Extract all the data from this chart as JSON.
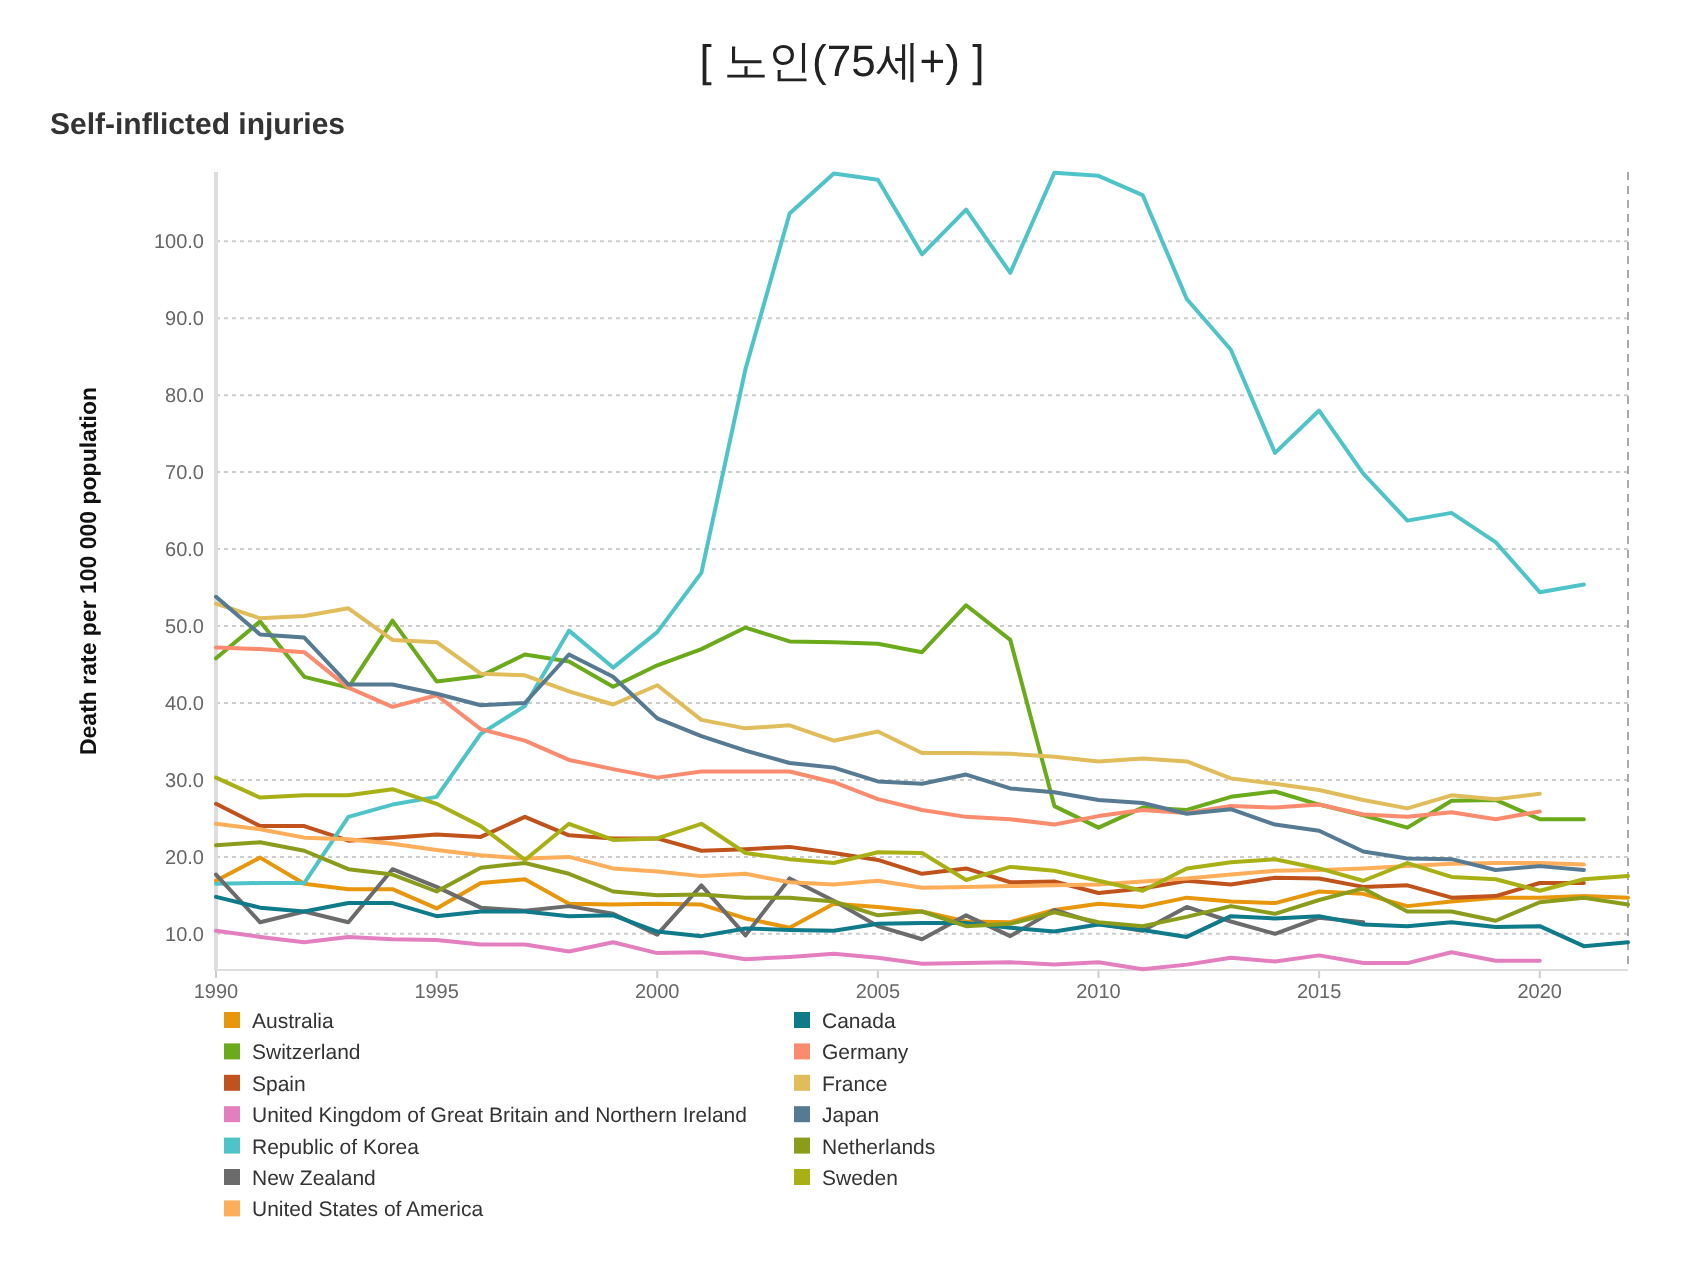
{
  "chart_data": {
    "type": "line",
    "title": "[ 노인(75세+) ]",
    "subtitle": "Self-inflicted injuries",
    "ylabel": "Death rate per 100 000 population",
    "xlim": [
      1990,
      2022
    ],
    "xticks": [
      1990,
      1995,
      2000,
      2005,
      2010,
      2015,
      2020
    ],
    "ylim": [
      5.3,
      109
    ],
    "yticks": [
      {
        "value": 10,
        "label": "10.0"
      },
      {
        "value": 20,
        "label": "20.0"
      },
      {
        "value": 30,
        "label": "30.0"
      },
      {
        "value": 40,
        "label": "40.0"
      },
      {
        "value": 50,
        "label": "50.0"
      },
      {
        "value": 60,
        "label": "60.0"
      },
      {
        "value": 70,
        "label": "70.0"
      },
      {
        "value": 80,
        "label": "80.0"
      },
      {
        "value": 90,
        "label": "90.0"
      },
      {
        "value": 100,
        "label": "100.0"
      }
    ],
    "grid": "y",
    "legend": "bottom",
    "marker": "none",
    "line_style": "solid",
    "ref_lines": [
      {
        "axis": "x",
        "value": 2022,
        "label": null,
        "color": "#aaaaaa",
        "line_style": "dashed"
      }
    ],
    "series": [
      {
        "name": "Australia",
        "color": "#e8960b",
        "x": [
          1990,
          1991,
          1992,
          1993,
          1994,
          1995,
          1996,
          1997,
          1998,
          1999,
          2000,
          2001,
          2002,
          2003,
          2004,
          2005,
          2006,
          2007,
          2008,
          2009,
          2010,
          2011,
          2012,
          2013,
          2014,
          2015,
          2016,
          2017,
          2018,
          2019,
          2020,
          2021,
          2022
        ],
        "values": [
          16.9,
          19.9,
          16.5,
          15.8,
          15.8,
          13.3,
          16.6,
          17.1,
          13.9,
          13.8,
          13.9,
          13.8,
          12.0,
          10.8,
          13.9,
          13.5,
          12.9,
          11.6,
          11.5,
          13.1,
          13.9,
          13.5,
          14.7,
          14.2,
          14.0,
          15.5,
          15.2,
          13.6,
          14.2,
          14.7,
          14.7,
          14.9,
          14.7
        ]
      },
      {
        "name": "Switzerland",
        "color": "#6aaa1b",
        "x": [
          1990,
          1991,
          1992,
          1993,
          1994,
          1995,
          1996,
          1997,
          1998,
          1999,
          2000,
          2001,
          2002,
          2003,
          2004,
          2005,
          2006,
          2007,
          2008,
          2009,
          2010,
          2011,
          2012,
          2013,
          2014,
          2015,
          2016,
          2017,
          2018,
          2019,
          2020,
          2021
        ],
        "values": [
          45.8,
          50.6,
          43.4,
          42.0,
          50.7,
          42.8,
          43.5,
          46.3,
          45.4,
          42.1,
          44.9,
          47.0,
          49.8,
          48.0,
          47.9,
          47.7,
          46.6,
          52.7,
          48.2,
          26.6,
          23.8,
          26.4,
          26.1,
          27.8,
          28.5,
          26.8,
          25.4,
          23.8,
          27.3,
          27.4,
          24.9,
          24.9
        ]
      },
      {
        "name": "Spain",
        "color": "#c0521b",
        "x": [
          1990,
          1991,
          1992,
          1993,
          1994,
          1995,
          1996,
          1997,
          1998,
          1999,
          2000,
          2001,
          2002,
          2003,
          2004,
          2005,
          2006,
          2007,
          2008,
          2009,
          2010,
          2011,
          2012,
          2013,
          2014,
          2015,
          2016,
          2017,
          2018,
          2019,
          2020,
          2021
        ],
        "values": [
          26.9,
          24.0,
          24.0,
          22.1,
          22.5,
          22.9,
          22.6,
          25.2,
          22.8,
          22.4,
          22.4,
          20.8,
          21.0,
          21.3,
          20.5,
          19.6,
          17.8,
          18.5,
          16.7,
          16.8,
          15.3,
          15.9,
          16.9,
          16.4,
          17.3,
          17.2,
          16.1,
          16.3,
          14.7,
          14.9,
          16.6,
          16.6
        ]
      },
      {
        "name": "United Kingdom of Great Britain and Northern Ireland",
        "color": "#e37fbf",
        "x": [
          1990,
          1991,
          1992,
          1993,
          1994,
          1995,
          1996,
          1997,
          1998,
          1999,
          2000,
          2001,
          2002,
          2003,
          2004,
          2005,
          2006,
          2007,
          2008,
          2009,
          2010,
          2011,
          2012,
          2013,
          2014,
          2015,
          2016,
          2017,
          2018,
          2019,
          2020
        ],
        "values": [
          10.4,
          9.6,
          8.9,
          9.6,
          9.3,
          9.2,
          8.6,
          8.6,
          7.7,
          8.9,
          7.5,
          7.6,
          6.7,
          7.0,
          7.4,
          6.9,
          6.1,
          6.2,
          6.3,
          6.0,
          6.3,
          5.4,
          6.0,
          6.9,
          6.4,
          7.2,
          6.2,
          6.2,
          7.6,
          6.5,
          6.5
        ]
      },
      {
        "name": "Republic of Korea",
        "color": "#4fc4c8",
        "x": [
          1990,
          1991,
          1992,
          1993,
          1994,
          1995,
          1996,
          1997,
          1998,
          1999,
          2000,
          2001,
          2002,
          2003,
          2004,
          2005,
          2006,
          2007,
          2008,
          2009,
          2010,
          2011,
          2012,
          2013,
          2014,
          2015,
          2016,
          2017,
          2018,
          2019,
          2020,
          2021
        ],
        "values": [
          16.5,
          16.6,
          16.6,
          25.2,
          26.8,
          27.8,
          36.0,
          39.6,
          49.4,
          44.6,
          49.2,
          56.9,
          83.4,
          103.6,
          108.8,
          108.0,
          98.3,
          104.1,
          95.9,
          108.9,
          108.5,
          106.0,
          92.5,
          85.9,
          72.5,
          78.0,
          69.8,
          63.7,
          64.7,
          60.9,
          54.4,
          55.4
        ]
      },
      {
        "name": "New Zealand",
        "color": "#6b6b6b",
        "x": [
          1990,
          1991,
          1992,
          1993,
          1994,
          1995,
          1996,
          1997,
          1998,
          1999,
          2000,
          2001,
          2002,
          2003,
          2004,
          2005,
          2006,
          2007,
          2008,
          2009,
          2010,
          2011,
          2012,
          2013,
          2014,
          2015,
          2016
        ],
        "values": [
          17.7,
          11.5,
          12.9,
          11.5,
          18.4,
          16.1,
          13.4,
          13.0,
          13.6,
          12.6,
          9.9,
          16.3,
          9.8,
          17.2,
          14.3,
          11.0,
          9.3,
          12.4,
          9.7,
          13.1,
          11.3,
          10.4,
          13.5,
          11.6,
          10.0,
          12.1,
          11.5
        ]
      },
      {
        "name": "United States of America",
        "color": "#fdae5a",
        "x": [
          1990,
          1991,
          1992,
          1993,
          1994,
          1995,
          1996,
          1997,
          1998,
          1999,
          2000,
          2001,
          2002,
          2003,
          2004,
          2005,
          2006,
          2007,
          2008,
          2009,
          2010,
          2011,
          2012,
          2013,
          2014,
          2015,
          2016,
          2017,
          2018,
          2019,
          2020,
          2021
        ],
        "values": [
          24.3,
          23.6,
          22.5,
          22.3,
          21.7,
          20.9,
          20.2,
          19.8,
          20.0,
          18.5,
          18.1,
          17.5,
          17.8,
          16.7,
          16.4,
          16.9,
          16.0,
          16.1,
          16.2,
          16.3,
          16.4,
          16.8,
          17.2,
          17.7,
          18.2,
          18.3,
          18.5,
          18.8,
          19.1,
          19.2,
          19.2,
          19.0
        ]
      },
      {
        "name": "Canada",
        "color": "#0f7a8a",
        "x": [
          1990,
          1991,
          1992,
          1993,
          1994,
          1995,
          1996,
          1997,
          1998,
          1999,
          2000,
          2001,
          2002,
          2003,
          2004,
          2005,
          2006,
          2007,
          2008,
          2009,
          2010,
          2011,
          2012,
          2013,
          2014,
          2015,
          2016,
          2017,
          2018,
          2019,
          2020,
          2021,
          2022
        ],
        "values": [
          14.8,
          13.4,
          12.9,
          14.0,
          14.0,
          12.3,
          12.9,
          12.9,
          12.3,
          12.4,
          10.3,
          9.7,
          10.7,
          10.5,
          10.4,
          11.3,
          11.4,
          11.4,
          10.8,
          10.3,
          11.2,
          10.5,
          9.6,
          12.3,
          12.0,
          12.3,
          11.2,
          11.0,
          11.5,
          10.9,
          11.0,
          8.4,
          8.9
        ]
      },
      {
        "name": "Germany",
        "color": "#fa8b6e",
        "x": [
          1990,
          1991,
          1992,
          1993,
          1994,
          1995,
          1996,
          1997,
          1998,
          1999,
          2000,
          2001,
          2002,
          2003,
          2004,
          2005,
          2006,
          2007,
          2008,
          2009,
          2010,
          2011,
          2012,
          2013,
          2014,
          2015,
          2016,
          2017,
          2018,
          2019,
          2020
        ],
        "values": [
          47.2,
          47.0,
          46.6,
          42.0,
          39.5,
          41.0,
          36.6,
          35.1,
          32.6,
          31.4,
          30.3,
          31.1,
          31.1,
          31.1,
          29.7,
          27.5,
          26.1,
          25.2,
          24.9,
          24.2,
          25.3,
          26.1,
          25.7,
          26.6,
          26.4,
          26.8,
          25.5,
          25.2,
          25.8,
          24.9,
          25.9
        ]
      },
      {
        "name": "France",
        "color": "#e0bc5a",
        "x": [
          1990,
          1991,
          1992,
          1993,
          1994,
          1995,
          1996,
          1997,
          1998,
          1999,
          2000,
          2001,
          2002,
          2003,
          2004,
          2005,
          2006,
          2007,
          2008,
          2009,
          2010,
          2011,
          2012,
          2013,
          2014,
          2015,
          2016,
          2017,
          2018,
          2019,
          2020
        ],
        "values": [
          52.9,
          51.0,
          51.3,
          52.3,
          48.2,
          47.9,
          43.8,
          43.6,
          41.5,
          39.8,
          42.3,
          37.8,
          36.7,
          37.1,
          35.1,
          36.3,
          33.5,
          33.5,
          33.4,
          33.0,
          32.4,
          32.8,
          32.4,
          30.2,
          29.5,
          28.7,
          27.4,
          26.3,
          28.0,
          27.5,
          28.2
        ]
      },
      {
        "name": "Japan",
        "color": "#557a92",
        "x": [
          1990,
          1991,
          1992,
          1993,
          1994,
          1995,
          1996,
          1997,
          1998,
          1999,
          2000,
          2001,
          2002,
          2003,
          2004,
          2005,
          2006,
          2007,
          2008,
          2009,
          2010,
          2011,
          2012,
          2013,
          2014,
          2015,
          2016,
          2017,
          2018,
          2019,
          2020,
          2021
        ],
        "values": [
          53.8,
          48.9,
          48.5,
          42.4,
          42.4,
          41.2,
          39.7,
          40.0,
          46.3,
          43.4,
          38.0,
          35.7,
          33.8,
          32.2,
          31.6,
          29.8,
          29.5,
          30.7,
          28.9,
          28.4,
          27.4,
          27.0,
          25.6,
          26.2,
          24.2,
          23.4,
          20.7,
          19.8,
          19.7,
          18.3,
          18.8,
          18.3
        ]
      },
      {
        "name": "Netherlands",
        "color": "#8b9c1d",
        "x": [
          1990,
          1991,
          1992,
          1993,
          1994,
          1995,
          1996,
          1997,
          1998,
          1999,
          2000,
          2001,
          2002,
          2003,
          2004,
          2005,
          2006,
          2007,
          2008,
          2009,
          2010,
          2011,
          2012,
          2013,
          2014,
          2015,
          2016,
          2017,
          2018,
          2019,
          2020,
          2021,
          2022
        ],
        "values": [
          21.5,
          21.9,
          20.8,
          18.4,
          17.7,
          15.5,
          18.6,
          19.2,
          17.8,
          15.5,
          15.0,
          15.1,
          14.7,
          14.7,
          14.2,
          12.4,
          12.9,
          11.0,
          11.3,
          12.8,
          11.5,
          11.0,
          12.2,
          13.6,
          12.6,
          14.4,
          15.9,
          12.9,
          12.9,
          11.7,
          14.1,
          14.7,
          13.8
        ]
      },
      {
        "name": "Sweden",
        "color": "#a8b016",
        "x": [
          1990,
          1991,
          1992,
          1993,
          1994,
          1995,
          1996,
          1997,
          1998,
          1999,
          2000,
          2001,
          2002,
          2003,
          2004,
          2005,
          2006,
          2007,
          2008,
          2009,
          2010,
          2011,
          2012,
          2013,
          2014,
          2015,
          2016,
          2017,
          2018,
          2019,
          2020,
          2021,
          2022
        ],
        "values": [
          30.3,
          27.7,
          28.0,
          28.0,
          28.8,
          26.9,
          24.0,
          19.6,
          24.3,
          22.2,
          22.4,
          24.3,
          20.5,
          19.7,
          19.2,
          20.6,
          20.5,
          17.0,
          18.7,
          18.2,
          16.9,
          15.6,
          18.5,
          19.3,
          19.7,
          18.5,
          16.9,
          19.2,
          17.4,
          17.1,
          15.6,
          17.1,
          17.5
        ]
      }
    ]
  }
}
